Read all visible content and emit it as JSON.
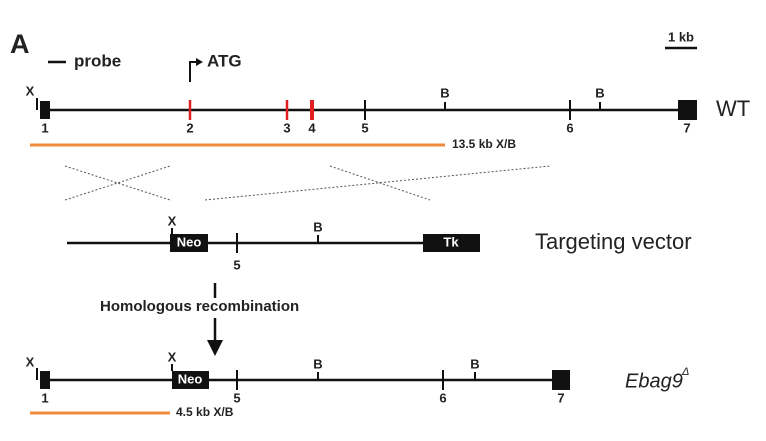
{
  "panel_label": "A",
  "legend": {
    "probe": "probe",
    "atg": "ATG",
    "scale": "1 kb"
  },
  "wt": {
    "label": "WT",
    "sites": [
      "X",
      "B",
      "B"
    ],
    "exons": [
      "1",
      "2",
      "3",
      "4",
      "5",
      "6",
      "7"
    ],
    "fragment": "13.5 kb X/B"
  },
  "vector": {
    "label": "Targeting vector",
    "sites": [
      "X",
      "B"
    ],
    "neo": "Neo",
    "tk": "Tk",
    "exons": [
      "5"
    ]
  },
  "step": "Homologous recombination",
  "ko": {
    "label": "Ebag9",
    "label_sup": "Δ",
    "sites": [
      "X",
      "X",
      "B",
      "B"
    ],
    "neo": "Neo",
    "exons": [
      "1",
      "5",
      "6",
      "7"
    ],
    "fragment": "4.5 kb X/B"
  }
}
